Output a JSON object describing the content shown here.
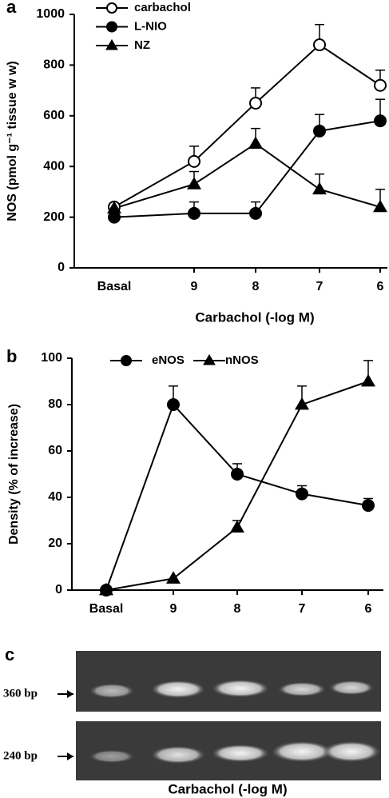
{
  "chart_data": [
    {
      "type": "line",
      "label": "a",
      "ylabel": "NOS (pmol g⁻¹ tissue w w)",
      "xlabel": "Carbachol  (-log M)",
      "categories": [
        "Basal",
        "9",
        "8",
        "7",
        "6"
      ],
      "ylim": [
        0,
        1000
      ],
      "yticks": [
        0,
        200,
        400,
        600,
        800,
        1000
      ],
      "series": [
        {
          "name": "carbachol",
          "color": "#ffffff",
          "marker": "circle",
          "values": [
            240,
            420,
            650,
            880,
            720
          ],
          "errors": [
            null,
            60,
            60,
            80,
            60
          ]
        },
        {
          "name": "L-NIO",
          "color": "#000000",
          "marker": "circle",
          "values": [
            200,
            215,
            215,
            540,
            580
          ],
          "errors": [
            null,
            45,
            45,
            65,
            85
          ]
        },
        {
          "name": "NZ",
          "color": "#000000",
          "marker": "triangle",
          "values": [
            235,
            330,
            490,
            310,
            240
          ],
          "errors": [
            null,
            50,
            60,
            60,
            70
          ]
        }
      ]
    },
    {
      "type": "line",
      "label": "b",
      "ylabel": "Density (% of increase)",
      "categories": [
        "Basal",
        "9",
        "8",
        "7",
        "6"
      ],
      "ylim": [
        0,
        100
      ],
      "yticks": [
        0,
        20,
        40,
        60,
        80,
        100
      ],
      "series": [
        {
          "name": "eNOS",
          "color": "#000000",
          "marker": "circle",
          "values": [
            0,
            80,
            50,
            41.5,
            36.5
          ],
          "errors": [
            null,
            8,
            4.5,
            3.5,
            3
          ]
        },
        {
          "name": "nNOS",
          "color": "#000000",
          "marker": "triangle",
          "values": [
            0,
            5,
            27,
            80,
            90
          ],
          "errors": [
            null,
            null,
            3,
            8,
            9
          ]
        }
      ]
    }
  ],
  "gel": {
    "label": "c",
    "bands": [
      "360 bp",
      "240 bp"
    ],
    "xlabel": "Carbachol  (-log M)"
  }
}
